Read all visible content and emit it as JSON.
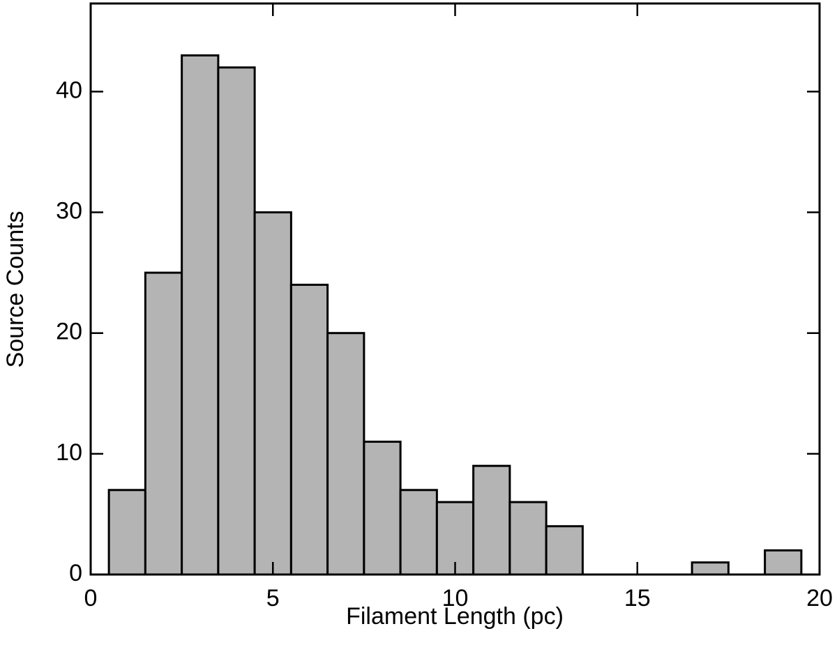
{
  "chart_data": {
    "type": "histogram",
    "x_label": "Filament Length (pc)",
    "y_label": "Source Counts",
    "bins": [
      0.5,
      1.5,
      2.5,
      3.5,
      4.5,
      5.5,
      6.5,
      7.5,
      8.5,
      9.5,
      10.5,
      11.5,
      12.5,
      13.5,
      14.5,
      15.5,
      16.5,
      17.5,
      18.5,
      19.5
    ],
    "values": [
      7,
      25,
      43,
      42,
      30,
      24,
      20,
      11,
      7,
      6,
      9,
      6,
      4,
      0,
      0,
      0,
      1,
      0,
      2
    ],
    "color": "#b4b4b4",
    "xlim": [
      0,
      20
    ],
    "xticks": [
      0,
      5,
      10,
      15,
      20
    ],
    "ylim": [
      0,
      47.3
    ],
    "yticks": [
      0,
      10,
      20,
      30,
      40
    ]
  }
}
